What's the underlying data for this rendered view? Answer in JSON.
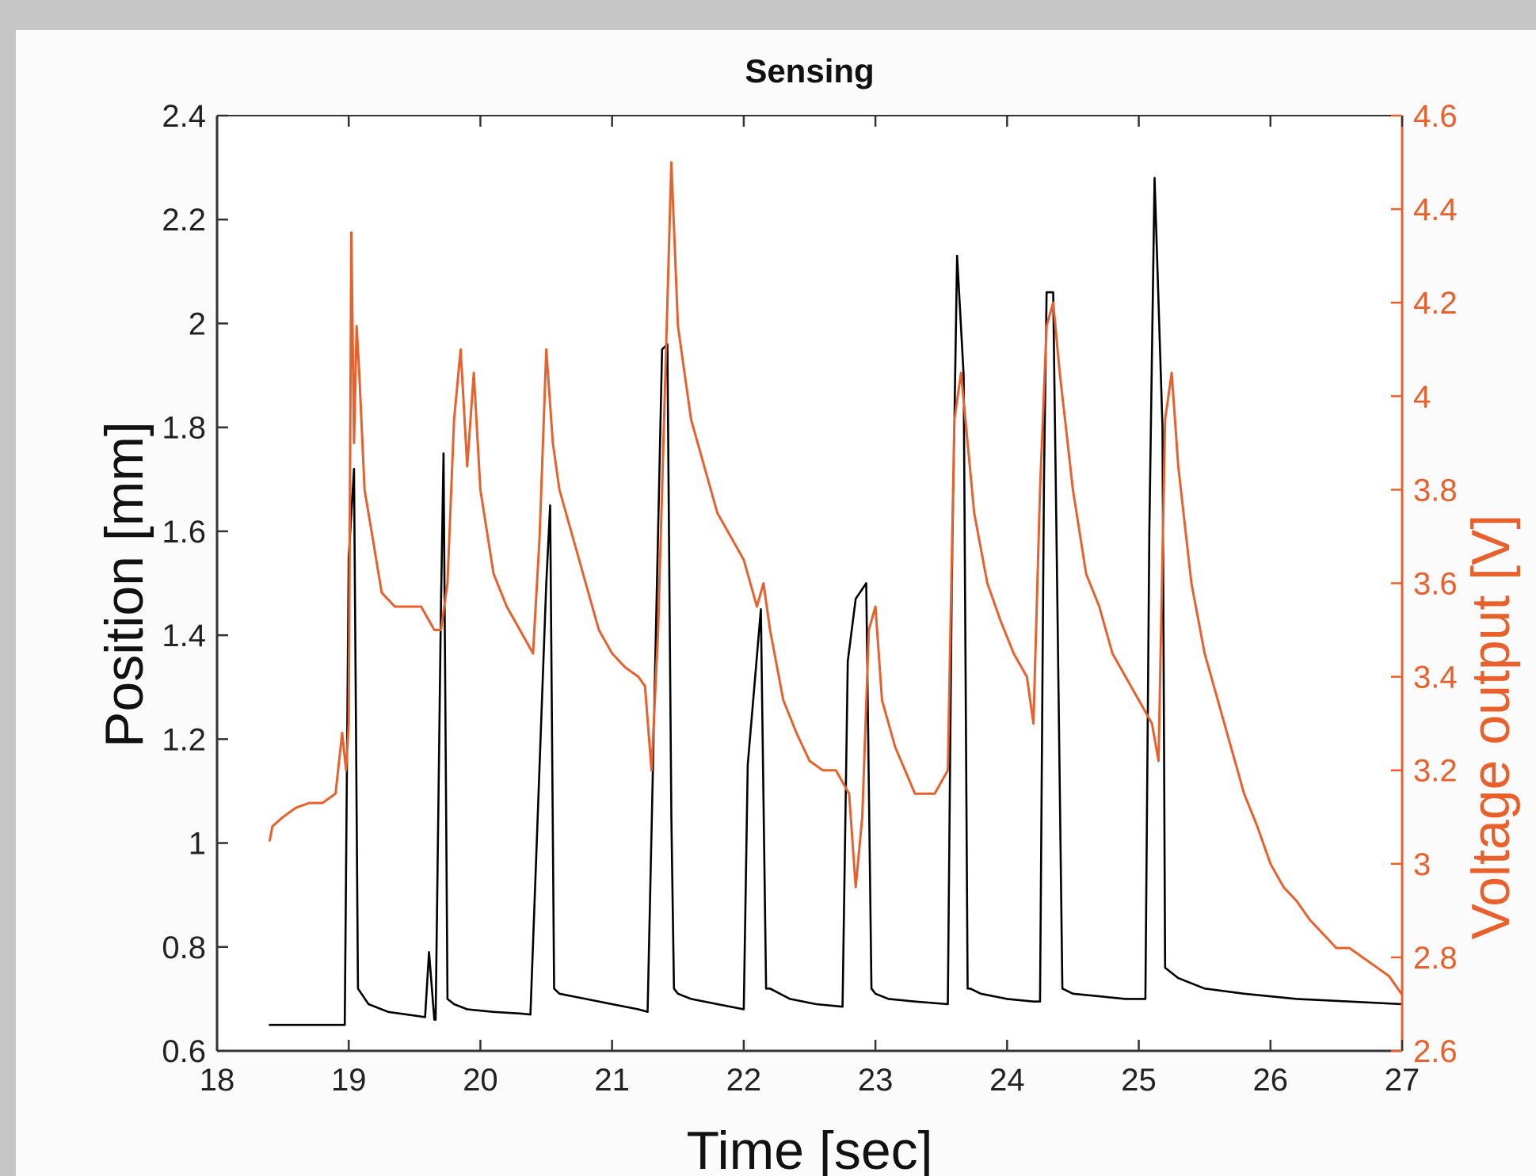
{
  "chart_data": {
    "type": "line",
    "title": "Sensing",
    "xlabel": "Time [sec]",
    "ylabel_left": "Position [mm]",
    "ylabel_right": "Voltage output [V]",
    "xlim": [
      18,
      27
    ],
    "ylim_left": [
      0.6,
      2.4
    ],
    "ylim_right": [
      2.6,
      4.6
    ],
    "xticks": [
      "18",
      "19",
      "20",
      "21",
      "22",
      "23",
      "24",
      "25",
      "26",
      "27"
    ],
    "yticks_left": [
      "0.6",
      "0.8",
      "1",
      "1.2",
      "1.4",
      "1.6",
      "1.8",
      "2",
      "2.2",
      "2.4"
    ],
    "yticks_right": [
      "2.6",
      "2.8",
      "3",
      "3.2",
      "3.4",
      "3.6",
      "3.8",
      "4",
      "4.2",
      "4.4",
      "4.6"
    ],
    "grid": false,
    "colors": {
      "position": "#000000",
      "voltage": "#e8602c",
      "right_axis": "#e8602c",
      "axis": "#333333"
    },
    "series": [
      {
        "axis": "left",
        "x": [
          18.4,
          18.97,
          19.0,
          19.04,
          19.07,
          19.15,
          19.3,
          19.5,
          19.58,
          19.61,
          19.65,
          19.66,
          19.7,
          19.72,
          19.75,
          19.8,
          19.9,
          20.1,
          20.3,
          20.38,
          20.5,
          20.53,
          20.56,
          20.6,
          20.8,
          21.0,
          21.2,
          21.27,
          21.38,
          21.42,
          21.45,
          21.47,
          21.5,
          21.6,
          21.8,
          22.0,
          22.03,
          22.13,
          22.17,
          22.2,
          22.35,
          22.55,
          22.75,
          22.79,
          22.85,
          22.93,
          22.97,
          23.0,
          23.1,
          23.3,
          23.55,
          23.58,
          23.62,
          23.67,
          23.7,
          23.72,
          23.8,
          24.0,
          24.2,
          24.25,
          24.28,
          24.3,
          24.35,
          24.38,
          24.42,
          24.5,
          24.7,
          24.9,
          25.05,
          25.08,
          25.12,
          25.18,
          25.2,
          25.3,
          25.5,
          25.8,
          26.2,
          26.6,
          27.0
        ],
        "y": [
          0.65,
          0.65,
          1.55,
          1.72,
          0.72,
          0.69,
          0.675,
          0.668,
          0.665,
          0.79,
          0.66,
          0.66,
          1.45,
          1.75,
          0.7,
          0.69,
          0.68,
          0.675,
          0.672,
          0.67,
          1.5,
          1.65,
          0.72,
          0.71,
          0.7,
          0.69,
          0.68,
          0.675,
          1.95,
          1.96,
          1.05,
          0.72,
          0.71,
          0.7,
          0.69,
          0.68,
          1.15,
          1.45,
          0.72,
          0.72,
          0.7,
          0.69,
          0.685,
          1.35,
          1.47,
          1.5,
          0.72,
          0.71,
          0.7,
          0.695,
          0.69,
          1.5,
          2.13,
          1.9,
          0.72,
          0.72,
          0.71,
          0.7,
          0.695,
          0.695,
          1.7,
          2.06,
          2.06,
          1.5,
          0.72,
          0.71,
          0.705,
          0.7,
          0.7,
          1.6,
          2.28,
          1.8,
          0.76,
          0.74,
          0.72,
          0.71,
          0.7,
          0.695,
          0.69
        ]
      },
      {
        "axis": "right",
        "x": [
          18.4,
          18.42,
          18.5,
          18.6,
          18.7,
          18.8,
          18.9,
          18.95,
          18.98,
          19.0,
          19.02,
          19.04,
          19.06,
          19.08,
          19.12,
          19.18,
          19.25,
          19.35,
          19.45,
          19.55,
          19.65,
          19.7,
          19.75,
          19.8,
          19.85,
          19.9,
          19.95,
          20.0,
          20.1,
          20.2,
          20.3,
          20.4,
          20.45,
          20.5,
          20.55,
          20.6,
          20.7,
          20.8,
          20.9,
          21.0,
          21.1,
          21.2,
          21.25,
          21.3,
          21.35,
          21.42,
          21.45,
          21.5,
          21.6,
          21.7,
          21.8,
          21.9,
          22.0,
          22.05,
          22.1,
          22.15,
          22.2,
          22.3,
          22.4,
          22.5,
          22.6,
          22.7,
          22.8,
          22.85,
          22.9,
          22.95,
          23.0,
          23.05,
          23.15,
          23.3,
          23.45,
          23.55,
          23.6,
          23.65,
          23.7,
          23.75,
          23.85,
          23.95,
          24.05,
          24.15,
          24.2,
          24.25,
          24.3,
          24.35,
          24.4,
          24.5,
          24.6,
          24.7,
          24.8,
          24.9,
          25.0,
          25.1,
          25.15,
          25.2,
          25.25,
          25.3,
          25.4,
          25.5,
          25.6,
          25.7,
          25.8,
          25.9,
          26.0,
          26.1,
          26.2,
          26.3,
          26.4,
          26.5,
          26.6,
          26.7,
          26.8,
          26.9,
          27.0
        ],
        "y": [
          3.05,
          3.08,
          3.1,
          3.12,
          3.13,
          3.13,
          3.15,
          3.28,
          3.2,
          3.3,
          4.35,
          3.9,
          4.15,
          4.05,
          3.8,
          3.7,
          3.58,
          3.55,
          3.55,
          3.55,
          3.5,
          3.5,
          3.6,
          3.95,
          4.1,
          3.85,
          4.05,
          3.8,
          3.62,
          3.55,
          3.5,
          3.45,
          3.7,
          4.1,
          3.9,
          3.8,
          3.7,
          3.6,
          3.5,
          3.45,
          3.42,
          3.4,
          3.38,
          3.2,
          3.5,
          4.2,
          4.5,
          4.15,
          3.95,
          3.85,
          3.75,
          3.7,
          3.65,
          3.6,
          3.55,
          3.6,
          3.5,
          3.35,
          3.28,
          3.22,
          3.2,
          3.2,
          3.15,
          2.95,
          3.1,
          3.5,
          3.55,
          3.35,
          3.25,
          3.15,
          3.15,
          3.2,
          3.95,
          4.05,
          3.9,
          3.75,
          3.6,
          3.52,
          3.45,
          3.4,
          3.3,
          3.8,
          4.15,
          4.2,
          4.05,
          3.8,
          3.62,
          3.55,
          3.45,
          3.4,
          3.35,
          3.3,
          3.22,
          3.95,
          4.05,
          3.85,
          3.6,
          3.45,
          3.35,
          3.25,
          3.15,
          3.08,
          3.0,
          2.95,
          2.92,
          2.88,
          2.85,
          2.82,
          2.82,
          2.8,
          2.78,
          2.76,
          2.72
        ]
      }
    ]
  }
}
